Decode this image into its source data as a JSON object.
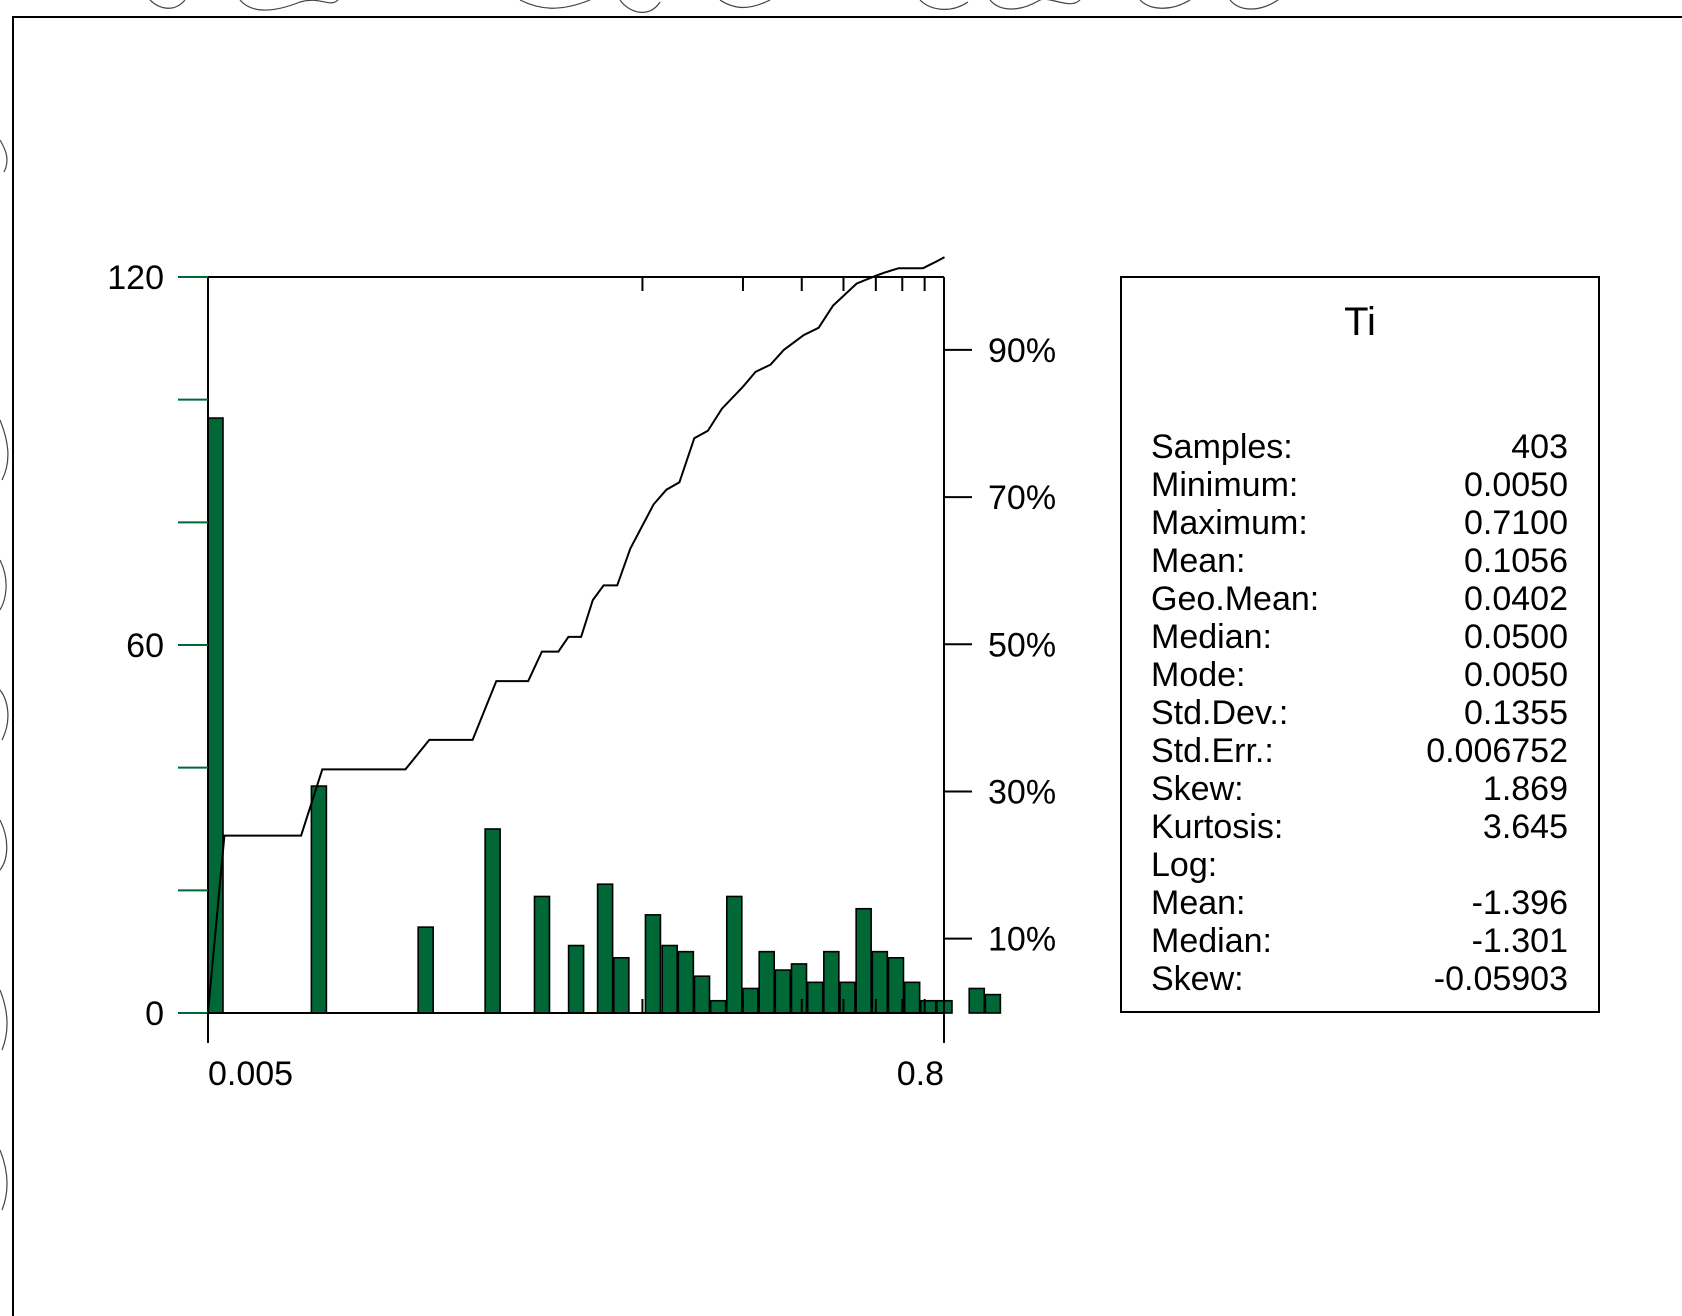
{
  "chart_data": {
    "type": "bar",
    "title": "Ti",
    "xlabel": "",
    "ylabel": "",
    "x_scale": "log",
    "x_tick_labels": [
      "0.005",
      "0.8"
    ],
    "xlim": [
      0.005,
      0.8
    ],
    "y_tick_labels": [
      "0",
      "60",
      "120"
    ],
    "ylim": [
      0,
      120
    ],
    "y2_tick_labels": [
      "10%",
      "30%",
      "50%",
      "70%",
      "90%"
    ],
    "y2lim_percent": [
      -0.1,
      99.9
    ],
    "bar_color": "#006837",
    "histogram": [
      {
        "x": 0.005,
        "count": 97
      },
      {
        "x": 0.0102,
        "count": 37
      },
      {
        "x": 0.0213,
        "count": 14
      },
      {
        "x": 0.0338,
        "count": 30
      },
      {
        "x": 0.0475,
        "count": 19
      },
      {
        "x": 0.0601,
        "count": 11
      },
      {
        "x": 0.0734,
        "count": 21
      },
      {
        "x": 0.0821,
        "count": 9
      },
      {
        "x": 0.1021,
        "count": 16
      },
      {
        "x": 0.1146,
        "count": 11
      },
      {
        "x": 0.1281,
        "count": 10
      },
      {
        "x": 0.1432,
        "count": 6
      },
      {
        "x": 0.1601,
        "count": 2
      },
      {
        "x": 0.1789,
        "count": 19
      },
      {
        "x": 0.2,
        "count": 4
      },
      {
        "x": 0.2237,
        "count": 10
      },
      {
        "x": 0.25,
        "count": 7
      },
      {
        "x": 0.2795,
        "count": 8
      },
      {
        "x": 0.3125,
        "count": 5
      },
      {
        "x": 0.3493,
        "count": 10
      },
      {
        "x": 0.3905,
        "count": 5
      },
      {
        "x": 0.4365,
        "count": 17
      },
      {
        "x": 0.488,
        "count": 10
      },
      {
        "x": 0.5455,
        "count": 9
      },
      {
        "x": 0.6099,
        "count": 5
      },
      {
        "x": 0.6818,
        "count": 2
      },
      {
        "x": 0.7622,
        "count": 2
      },
      {
        "x": 0.952,
        "count": 4
      },
      {
        "x": 1.0642,
        "count": 3
      }
    ],
    "cumulative_percent": [
      {
        "x": 0.005,
        "y": 0
      },
      {
        "x": 0.0056,
        "y": 24
      },
      {
        "x": 0.0095,
        "y": 24
      },
      {
        "x": 0.011,
        "y": 33
      },
      {
        "x": 0.0195,
        "y": 33
      },
      {
        "x": 0.023,
        "y": 37
      },
      {
        "x": 0.031,
        "y": 37
      },
      {
        "x": 0.0365,
        "y": 45
      },
      {
        "x": 0.0455,
        "y": 45
      },
      {
        "x": 0.05,
        "y": 49
      },
      {
        "x": 0.056,
        "y": 49
      },
      {
        "x": 0.06,
        "y": 51
      },
      {
        "x": 0.0655,
        "y": 51
      },
      {
        "x": 0.071,
        "y": 56
      },
      {
        "x": 0.0765,
        "y": 58
      },
      {
        "x": 0.084,
        "y": 58
      },
      {
        "x": 0.092,
        "y": 63
      },
      {
        "x": 0.108,
        "y": 69
      },
      {
        "x": 0.118,
        "y": 71
      },
      {
        "x": 0.129,
        "y": 72
      },
      {
        "x": 0.143,
        "y": 78
      },
      {
        "x": 0.157,
        "y": 79
      },
      {
        "x": 0.173,
        "y": 82
      },
      {
        "x": 0.2,
        "y": 85
      },
      {
        "x": 0.218,
        "y": 87
      },
      {
        "x": 0.242,
        "y": 88
      },
      {
        "x": 0.265,
        "y": 90
      },
      {
        "x": 0.304,
        "y": 92
      },
      {
        "x": 0.337,
        "y": 93
      },
      {
        "x": 0.372,
        "y": 96
      },
      {
        "x": 0.438,
        "y": 99
      },
      {
        "x": 0.495,
        "y": 100
      },
      {
        "x": 0.531,
        "y": 100.5
      },
      {
        "x": 0.585,
        "y": 101.1
      },
      {
        "x": 0.692,
        "y": 101.1
      },
      {
        "x": 0.767,
        "y": 102.1
      },
      {
        "x": 0.803,
        "y": 102.6
      }
    ]
  },
  "stats_panel": {
    "title": "Ti",
    "rows": [
      {
        "label": "Samples:",
        "value": "403"
      },
      {
        "label": "Minimum:",
        "value": "0.0050"
      },
      {
        "label": "Maximum:",
        "value": "0.7100"
      },
      {
        "label": "Mean:",
        "value": "0.1056"
      },
      {
        "label": "Geo.Mean:",
        "value": "0.0402"
      },
      {
        "label": "Median:",
        "value": "0.0500"
      },
      {
        "label": "Mode:",
        "value": "0.0050"
      },
      {
        "label": "Std.Dev.:",
        "value": "0.1355"
      },
      {
        "label": "Std.Err.:",
        "value": "0.006752"
      },
      {
        "label": "Skew:",
        "value": "1.869"
      },
      {
        "label": "Kurtosis:",
        "value": "3.645"
      },
      {
        "label": "Log:",
        "value": ""
      },
      {
        "label": "Mean:",
        "value": "-1.396"
      },
      {
        "label": "Median:",
        "value": "-1.301"
      },
      {
        "label": "Skew:",
        "value": "-0.05903"
      }
    ]
  }
}
